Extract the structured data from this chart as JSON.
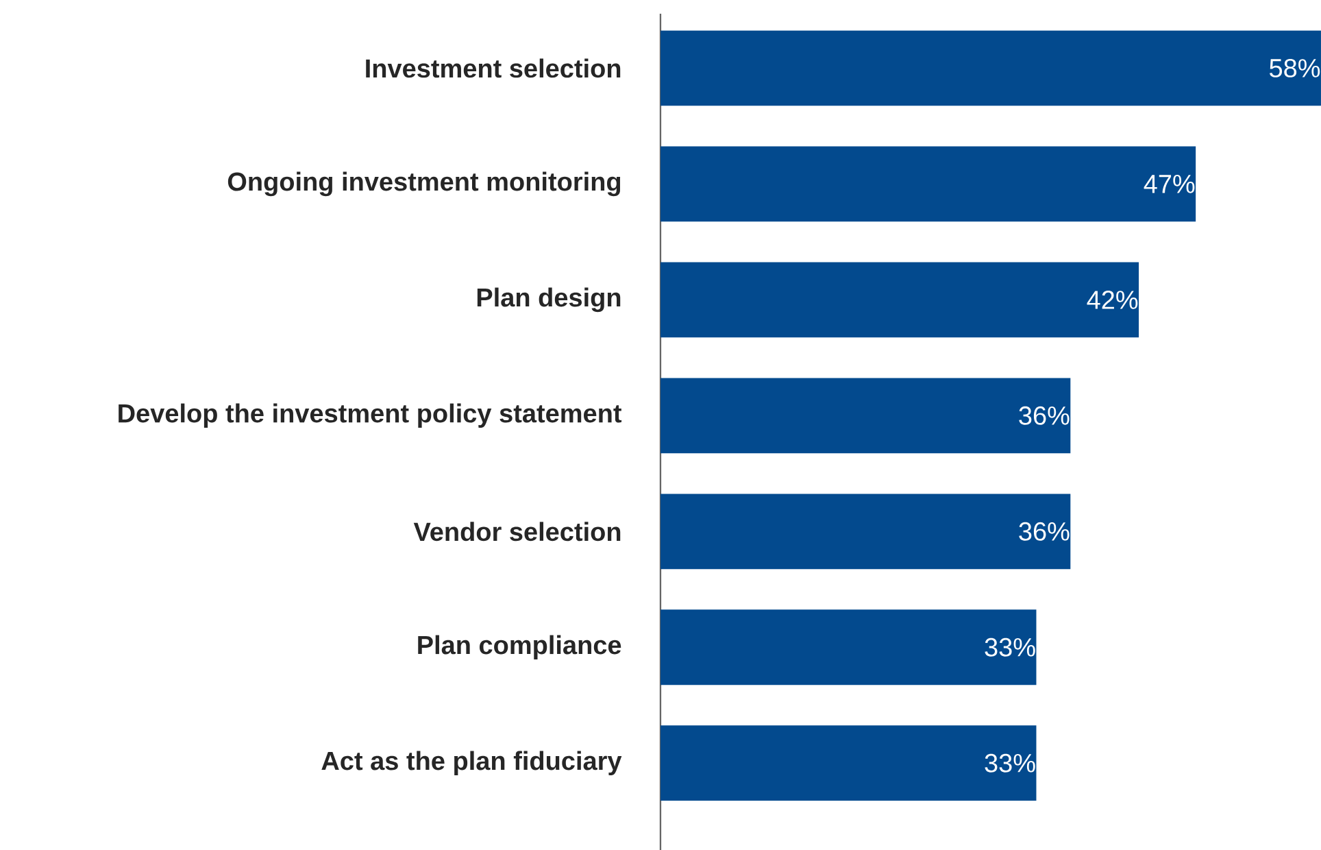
{
  "chart_data": {
    "type": "bar",
    "orientation": "horizontal",
    "color": "#034a8e",
    "categories": [
      "Investment selection",
      "Ongoing investment monitoring",
      "Plan design",
      "Develop the investment policy statement",
      "Vendor selection",
      "Plan compliance",
      "Act as the plan fiduciary"
    ],
    "values": [
      58,
      47,
      42,
      36,
      36,
      33,
      33
    ],
    "value_labels": [
      "58%",
      "47%",
      "42%",
      "36%",
      "36%",
      "33%",
      "33%"
    ]
  }
}
